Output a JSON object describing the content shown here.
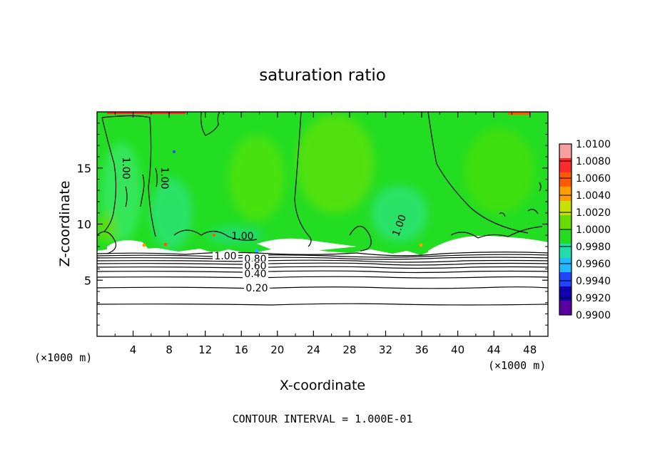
{
  "chart_data": {
    "type": "heatmap",
    "title": "saturation ratio",
    "xlabel": "X-coordinate",
    "ylabel": "Z-coordinate",
    "x_unit": "(×1000 m)",
    "x_unit_right": "(×1000 m)",
    "xlim": [
      0,
      50
    ],
    "ylim": [
      0,
      20
    ],
    "x_ticks": [
      4,
      8,
      12,
      16,
      20,
      24,
      28,
      32,
      36,
      40,
      44,
      48
    ],
    "y_ticks": [
      5,
      10,
      15
    ],
    "colorbar": {
      "levels": [
        "1.0100",
        "1.0080",
        "1.0060",
        "1.0040",
        "1.0020",
        "1.0000",
        "0.9980",
        "0.9960",
        "0.9940",
        "0.9920",
        "0.9900"
      ],
      "colors": [
        "#f6a0a0",
        "#ff2a2a",
        "#ff5a00",
        "#ff9e00",
        "#c8e000",
        "#66dd00",
        "#22dd22",
        "#22ddaa",
        "#22b8ff",
        "#2244ff",
        "#1000b0",
        "#5a00a0"
      ]
    },
    "contour_labels": [
      "1.00",
      "1.00",
      "1.00",
      "1.00",
      "1.00",
      "0.80",
      "0.60",
      "0.40",
      "0.20"
    ],
    "contour_levels_below_cloud": [
      0.2,
      0.4,
      0.6,
      0.8,
      1.0
    ],
    "footer": "CONTOUR INTERVAL = 1.000E-01",
    "colors": {
      "field": "#22dd22",
      "background": "#ffffff",
      "lines": "#000000"
    }
  }
}
